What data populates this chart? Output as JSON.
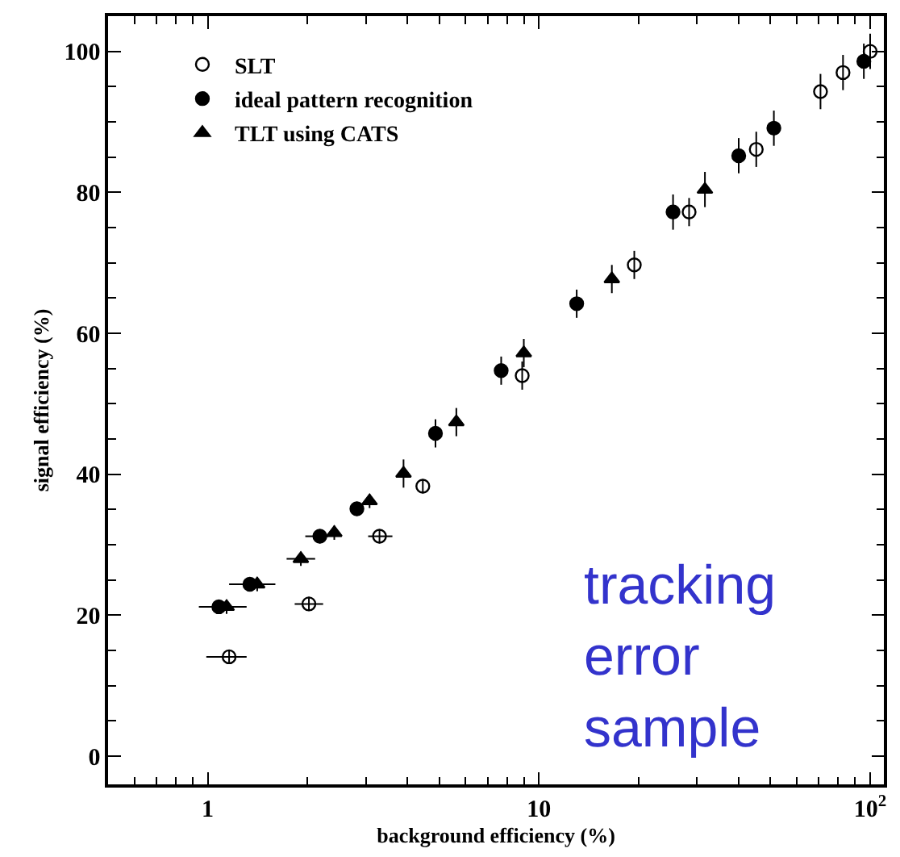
{
  "chart_data": {
    "type": "scatter",
    "xlabel": "background efficiency (%)",
    "ylabel": "signal efficiency (%)",
    "log": "x",
    "xlim": [
      0.5,
      110
    ],
    "xticks": [
      1,
      10,
      {
        "value": 100,
        "label": "10$^{2}$"
      }
    ],
    "ylim": [
      -4,
      105
    ],
    "yticks": [
      0,
      20,
      40,
      60,
      80,
      100
    ],
    "legend": "top left",
    "annotations": [
      "tracking\nerror\nsample"
    ],
    "series": [
      {
        "name": "SLT",
        "color": "#000000",
        "marker": "circle-open",
        "x": [
          1.16,
          2.02,
          3.3,
          4.46,
          8.9,
          19.4,
          28.4,
          45.3,
          70.8,
          82.8,
          100
        ],
        "values": [
          14.1,
          21.6,
          31.2,
          38.3,
          54.0,
          69.7,
          77.2,
          86.1,
          94.3,
          97.0,
          100
        ],
        "errors": [
          1,
          1,
          1,
          1,
          2,
          2,
          2,
          2.5,
          2.5,
          2.5,
          2.5
        ],
        "xerrors": [
          [
            0.99,
            1.31
          ],
          [
            1.83,
            2.23
          ],
          [
            3.05,
            3.61
          ],
          null,
          null,
          null,
          null,
          null,
          null,
          null,
          null
        ]
      },
      {
        "name": "ideal pattern recognition",
        "color": "#000000",
        "marker": "circle",
        "x": [
          1.08,
          1.34,
          2.18,
          2.82,
          4.87,
          7.69,
          13.0,
          25.4,
          40.1,
          51.2,
          95.7
        ],
        "values": [
          21.2,
          24.4,
          31.2,
          35.1,
          45.8,
          54.7,
          64.2,
          77.2,
          85.2,
          89.1,
          98.6
        ],
        "errors": [
          1,
          1,
          1,
          1,
          2,
          2,
          2,
          2.5,
          2.5,
          2.5,
          2.5
        ],
        "xerrors": [
          [
            0.94,
            1.31
          ],
          [
            1.16,
            1.6
          ],
          [
            1.97,
            2.31
          ],
          null,
          null,
          null,
          null,
          null,
          null,
          null,
          null
        ]
      },
      {
        "name": "TLT using CATS",
        "color": "#000000",
        "marker": "triangle",
        "x": [
          1.14,
          1.41,
          1.91,
          2.41,
          3.08,
          3.9,
          5.63,
          9.0,
          16.6,
          31.7
        ],
        "values": [
          21.2,
          24.4,
          28.0,
          31.7,
          36.2,
          40.1,
          47.4,
          57.2,
          67.7,
          80.4
        ],
        "errors": [
          1,
          1,
          1,
          1,
          1,
          2,
          2,
          2,
          2,
          2.5
        ],
        "xerrors": [
          null,
          null,
          [
            1.73,
            2.11
          ],
          null,
          null,
          null,
          null,
          null,
          null,
          null
        ]
      }
    ]
  }
}
